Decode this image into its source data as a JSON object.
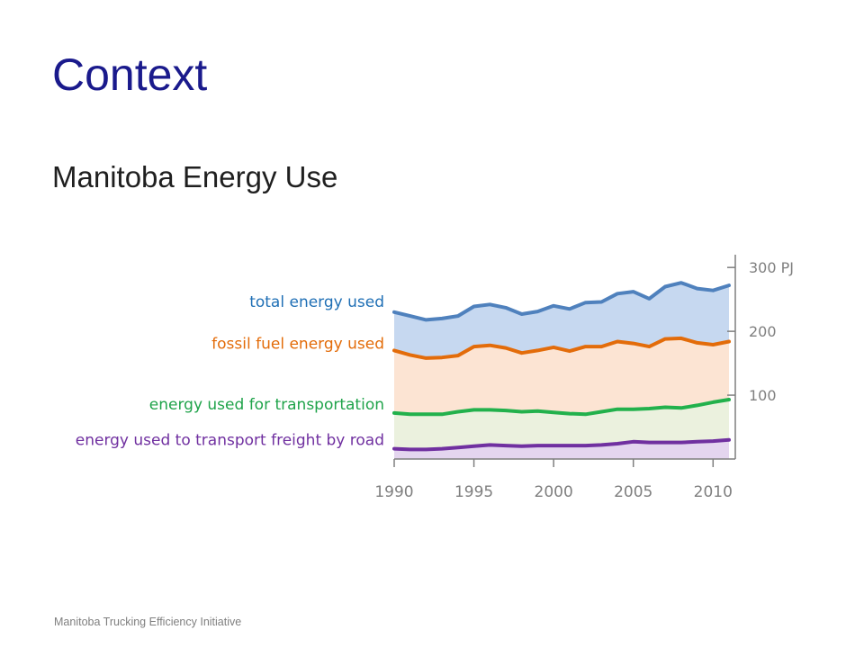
{
  "slide": {
    "title": "Context",
    "subtitle": "Manitoba Energy Use",
    "footer": "Manitoba Trucking Efficiency Initiative"
  },
  "chart_data": {
    "type": "area",
    "x_ticks": [
      "1990",
      "1995",
      "2000",
      "2005",
      "2010"
    ],
    "y_ticks": [
      "100",
      "200",
      "300 PJ"
    ],
    "y_tick_values": [
      100,
      200,
      300
    ],
    "xlim": [
      1990,
      2011
    ],
    "ylim": [
      0,
      320
    ],
    "x": [
      1990,
      1991,
      1992,
      1993,
      1994,
      1995,
      1996,
      1997,
      1998,
      1999,
      2000,
      2001,
      2002,
      2003,
      2004,
      2005,
      2006,
      2007,
      2008,
      2009,
      2010,
      2011
    ],
    "series": [
      {
        "name": "total energy used",
        "line_color": "#4f81bd",
        "fill_color": "#c6d8f0",
        "label_color": "#1f6fb5",
        "values": [
          230,
          224,
          218,
          220,
          224,
          239,
          242,
          237,
          227,
          231,
          240,
          235,
          245,
          246,
          259,
          262,
          251,
          270,
          276,
          267,
          264,
          272
        ]
      },
      {
        "name": "fossil fuel energy used",
        "line_color": "#e36c0a",
        "fill_color": "#fce4d3",
        "label_color": "#e36c0a",
        "values": [
          170,
          163,
          158,
          159,
          162,
          176,
          178,
          174,
          166,
          170,
          175,
          169,
          176,
          176,
          184,
          181,
          176,
          188,
          189,
          182,
          179,
          184
        ]
      },
      {
        "name": "energy used for transportation",
        "line_color": "#22b14c",
        "fill_color": "#ebf1de",
        "label_color": "#1fa34a",
        "values": [
          72,
          70,
          70,
          70,
          74,
          77,
          77,
          76,
          74,
          75,
          73,
          71,
          70,
          74,
          78,
          78,
          79,
          81,
          80,
          84,
          89,
          93
        ]
      },
      {
        "name": "energy used to transport freight by road",
        "line_color": "#7030a0",
        "fill_color": "#e4d5ef",
        "label_color": "#7030a0",
        "values": [
          16,
          15,
          15,
          16,
          18,
          20,
          22,
          21,
          20,
          21,
          21,
          21,
          21,
          22,
          24,
          27,
          26,
          26,
          26,
          27,
          28,
          30
        ]
      }
    ],
    "grid": false,
    "legend": "inline labels left of chart"
  }
}
